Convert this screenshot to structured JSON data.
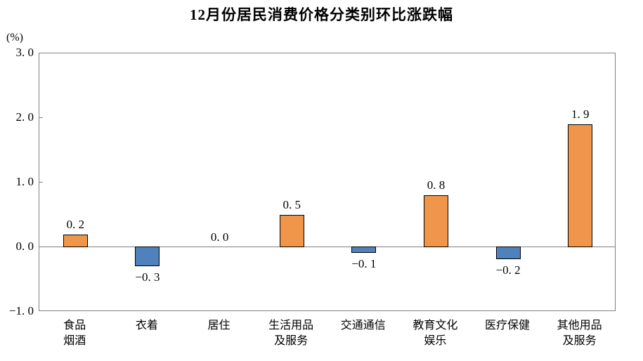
{
  "title": "12月份居民消费价格分类别环比涨跌幅",
  "y_axis": {
    "unit_label": "(%)",
    "tick_values": [
      3.0,
      2.0,
      1.0,
      0.0,
      -1.0
    ],
    "tick_labels": [
      "3. 0",
      "2. 0",
      "1. 0",
      "0. 0",
      "−1. 0"
    ]
  },
  "colors": {
    "bar_positive": "#F0964A",
    "bar_negative": "#4F81BD",
    "bar_border": "#000000",
    "axis_line": "#808080",
    "text": "#000000",
    "background": "#FFFFFF"
  },
  "chart_data": {
    "type": "bar",
    "title": "12月份居民消费价格分类别环比涨跌幅",
    "xlabel": "",
    "ylabel": "(%)",
    "ylim": [
      -1.0,
      3.0
    ],
    "grid": false,
    "legend": null,
    "categories": [
      "食品烟酒",
      "衣着",
      "居住",
      "生活用品及服务",
      "交通通信",
      "教育文化娱乐",
      "医疗保健",
      "其他用品及服务"
    ],
    "category_display_lines": [
      [
        "食品",
        "烟酒"
      ],
      [
        "衣着"
      ],
      [
        "居住"
      ],
      [
        "生活用品",
        "及服务"
      ],
      [
        "交通通信"
      ],
      [
        "教育文化",
        "娱乐"
      ],
      [
        "医疗保健"
      ],
      [
        "其他用品",
        "及服务"
      ]
    ],
    "values": [
      0.2,
      -0.3,
      0.0,
      0.5,
      -0.1,
      0.8,
      -0.2,
      1.9
    ],
    "value_labels": [
      "0. 2",
      "−0. 3",
      "0. 0",
      "0. 5",
      "−0. 1",
      "0. 8",
      "−0. 2",
      "1. 9"
    ]
  }
}
